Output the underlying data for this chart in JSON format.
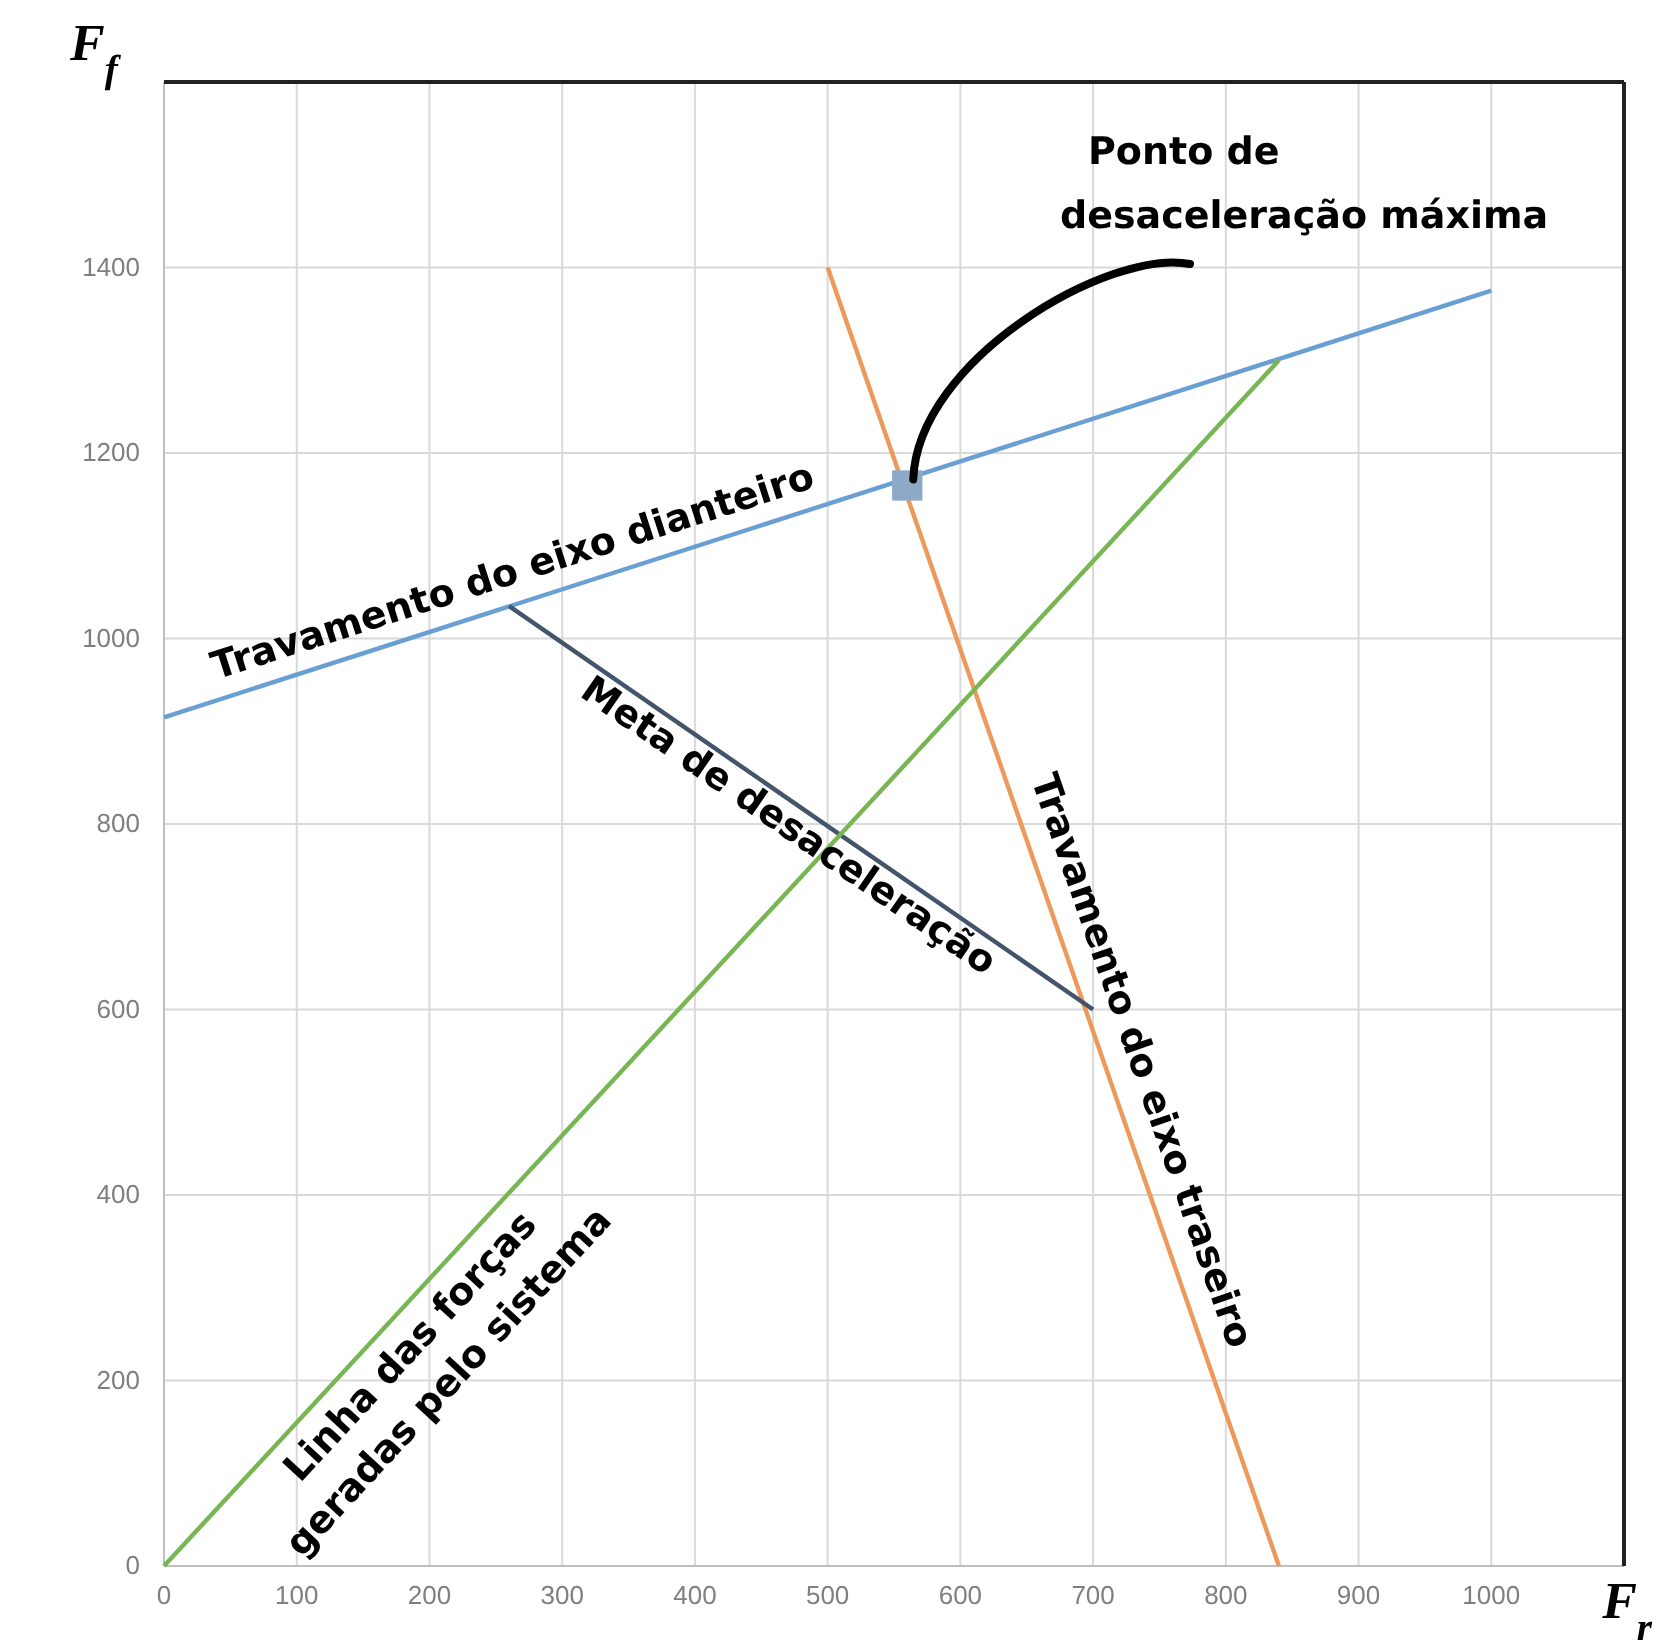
{
  "chart_data": {
    "type": "line",
    "xlabel": "F$_{r}$",
    "ylabel": "F$_{f}$",
    "xlim": [
      0,
      1100
    ],
    "ylim": [
      0,
      1600
    ],
    "xticks": [
      0,
      100,
      200,
      300,
      400,
      500,
      600,
      700,
      800,
      900,
      1000
    ],
    "yticks": [
      0,
      200,
      400,
      600,
      800,
      1000,
      1200,
      1400
    ],
    "grid": true,
    "marker": "none",
    "line_style": "solid",
    "series": [
      {
        "name": "Travamento do eixo dianteiro",
        "color": "#6a9fd4",
        "x": [
          0,
          1000
        ],
        "values": [
          915,
          1375
        ]
      },
      {
        "name": "Travamento do eixo traseiro",
        "color": "#eb9a5c",
        "x": [
          500,
          840
        ],
        "values": [
          1400,
          0
        ]
      },
      {
        "name": "Meta de desaceleração",
        "color": "#44546a",
        "x": [
          260,
          700
        ],
        "values": [
          1035,
          600
        ]
      },
      {
        "name": "Linha das forças geradas pelo sistema",
        "color": "#78b653",
        "x": [
          0,
          840
        ],
        "values": [
          0,
          1300
        ]
      },
      {
        "type": "scatter",
        "marker": "square",
        "color": "#8ea9c8",
        "x": [
          560
        ],
        "values": [
          1165
        ]
      }
    ],
    "annotations": [
      {
        "text": "Ponto de desaceleração máxima",
        "x": 560,
        "y": 1165
      }
    ]
  }
}
